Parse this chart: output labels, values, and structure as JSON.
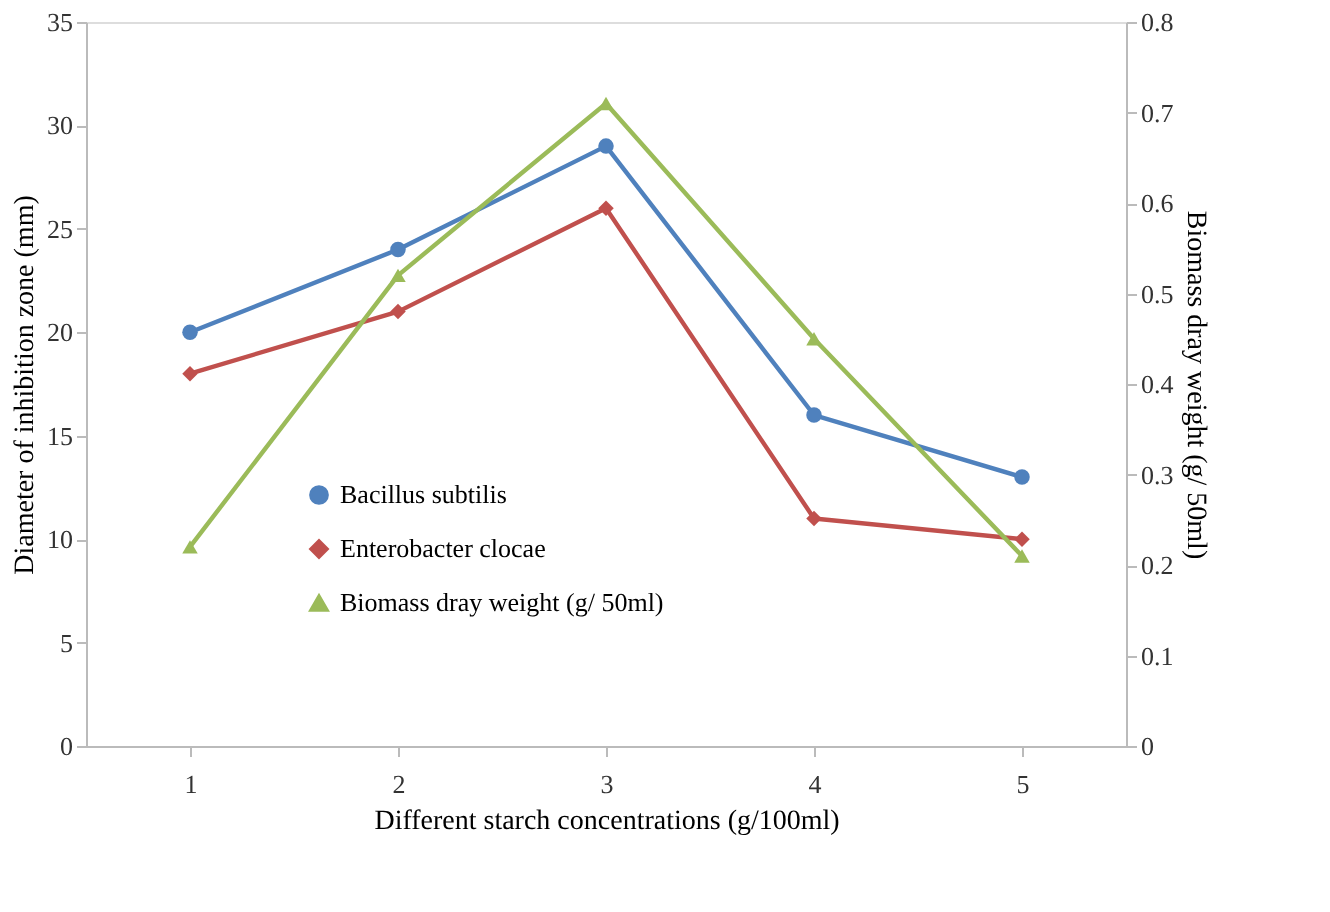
{
  "chart_data": {
    "type": "line",
    "xlabel": "Different starch concentrations (g/100ml)",
    "ylabel": "Diameter of inhibition zone (mm)",
    "y2label": "Biomass dray weight (g/ 50ml)",
    "categories": [
      "1",
      "2",
      "3",
      "4",
      "5"
    ],
    "series": [
      {
        "name": "Bacillus subtilis",
        "color": "#4f81bd",
        "marker": "circle",
        "values": [
          20,
          24,
          29,
          16,
          13
        ]
      },
      {
        "name": "Enterobacter clocae",
        "color": "#c0504d",
        "marker": "diamond",
        "values": [
          18,
          21,
          26,
          11,
          10
        ]
      },
      {
        "name": "Biomass dray weight (g/ 50ml)",
        "color": "#9bbb59",
        "marker": "triangle",
        "axis": "y2",
        "values": [
          0.22,
          0.52,
          0.71,
          0.45,
          0.21
        ]
      }
    ],
    "ylim": [
      0,
      35
    ],
    "yticks": [
      0,
      5,
      10,
      15,
      20,
      25,
      30,
      35
    ],
    "y2lim": [
      0,
      0.8
    ],
    "y2ticks": [
      0,
      0.1,
      0.2,
      0.3,
      0.4,
      0.5,
      0.6,
      0.7,
      0.8
    ],
    "grid": false,
    "legend": "left",
    "line_style": "solid"
  }
}
